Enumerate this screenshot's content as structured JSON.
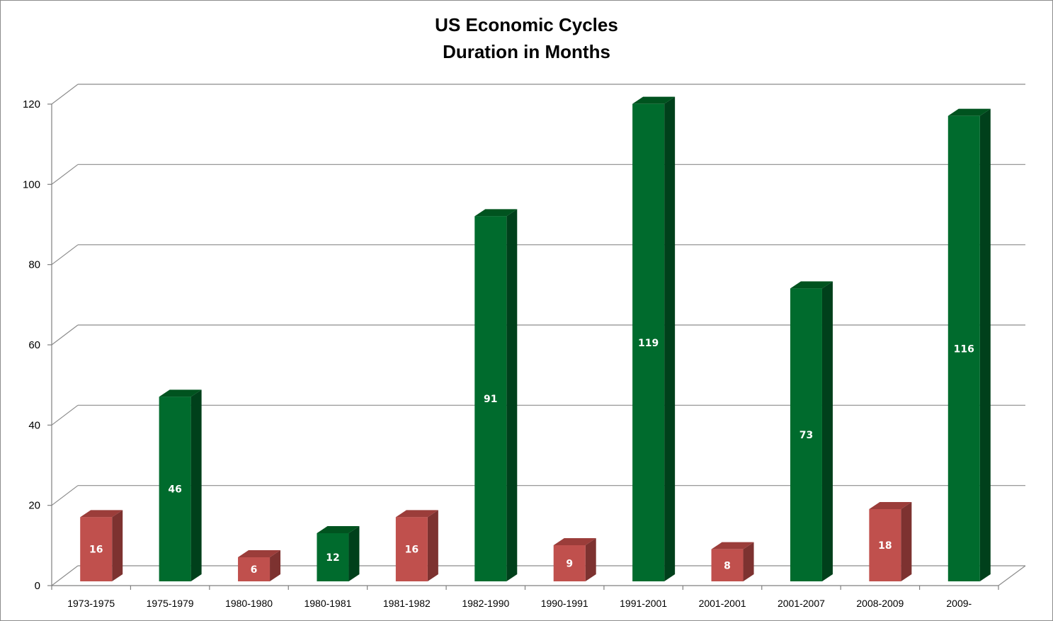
{
  "chart_data": {
    "type": "bar",
    "title_lines": [
      "US Economic Cycles",
      "Duration in Months"
    ],
    "categories": [
      "1973-1975",
      "1975-1979",
      "1980-1980",
      "1980-1981",
      "1981-1982",
      "1982-1990",
      "1990-1991",
      "1991-2001",
      "2001-2001",
      "2001-2007",
      "2008-2009",
      "2009-"
    ],
    "values": [
      16,
      46,
      6,
      12,
      16,
      91,
      9,
      119,
      8,
      73,
      18,
      116
    ],
    "data_labels": [
      "16",
      "46",
      "6",
      "12",
      "16",
      "91",
      "9",
      "119",
      "8",
      "73",
      "18",
      "116"
    ],
    "phase_colors": [
      "red",
      "green",
      "red",
      "green",
      "red",
      "green",
      "red",
      "green",
      "red",
      "green",
      "red",
      "green"
    ],
    "y_ticks": [
      "0",
      "20",
      "40",
      "60",
      "80",
      "100",
      "120"
    ],
    "y_tick_values": [
      0,
      20,
      40,
      60,
      80,
      100,
      120
    ],
    "ylim": [
      0,
      120
    ],
    "grid": true,
    "legend": "none",
    "colors": {
      "red_front": "#c0504d",
      "red_side": "#7d3230",
      "red_top": "#9b3d3a",
      "green_front": "#006b2d",
      "green_side": "#00401b",
      "green_top": "#00531f",
      "grid": "#8c8c8c",
      "axis": "#808080"
    }
  }
}
